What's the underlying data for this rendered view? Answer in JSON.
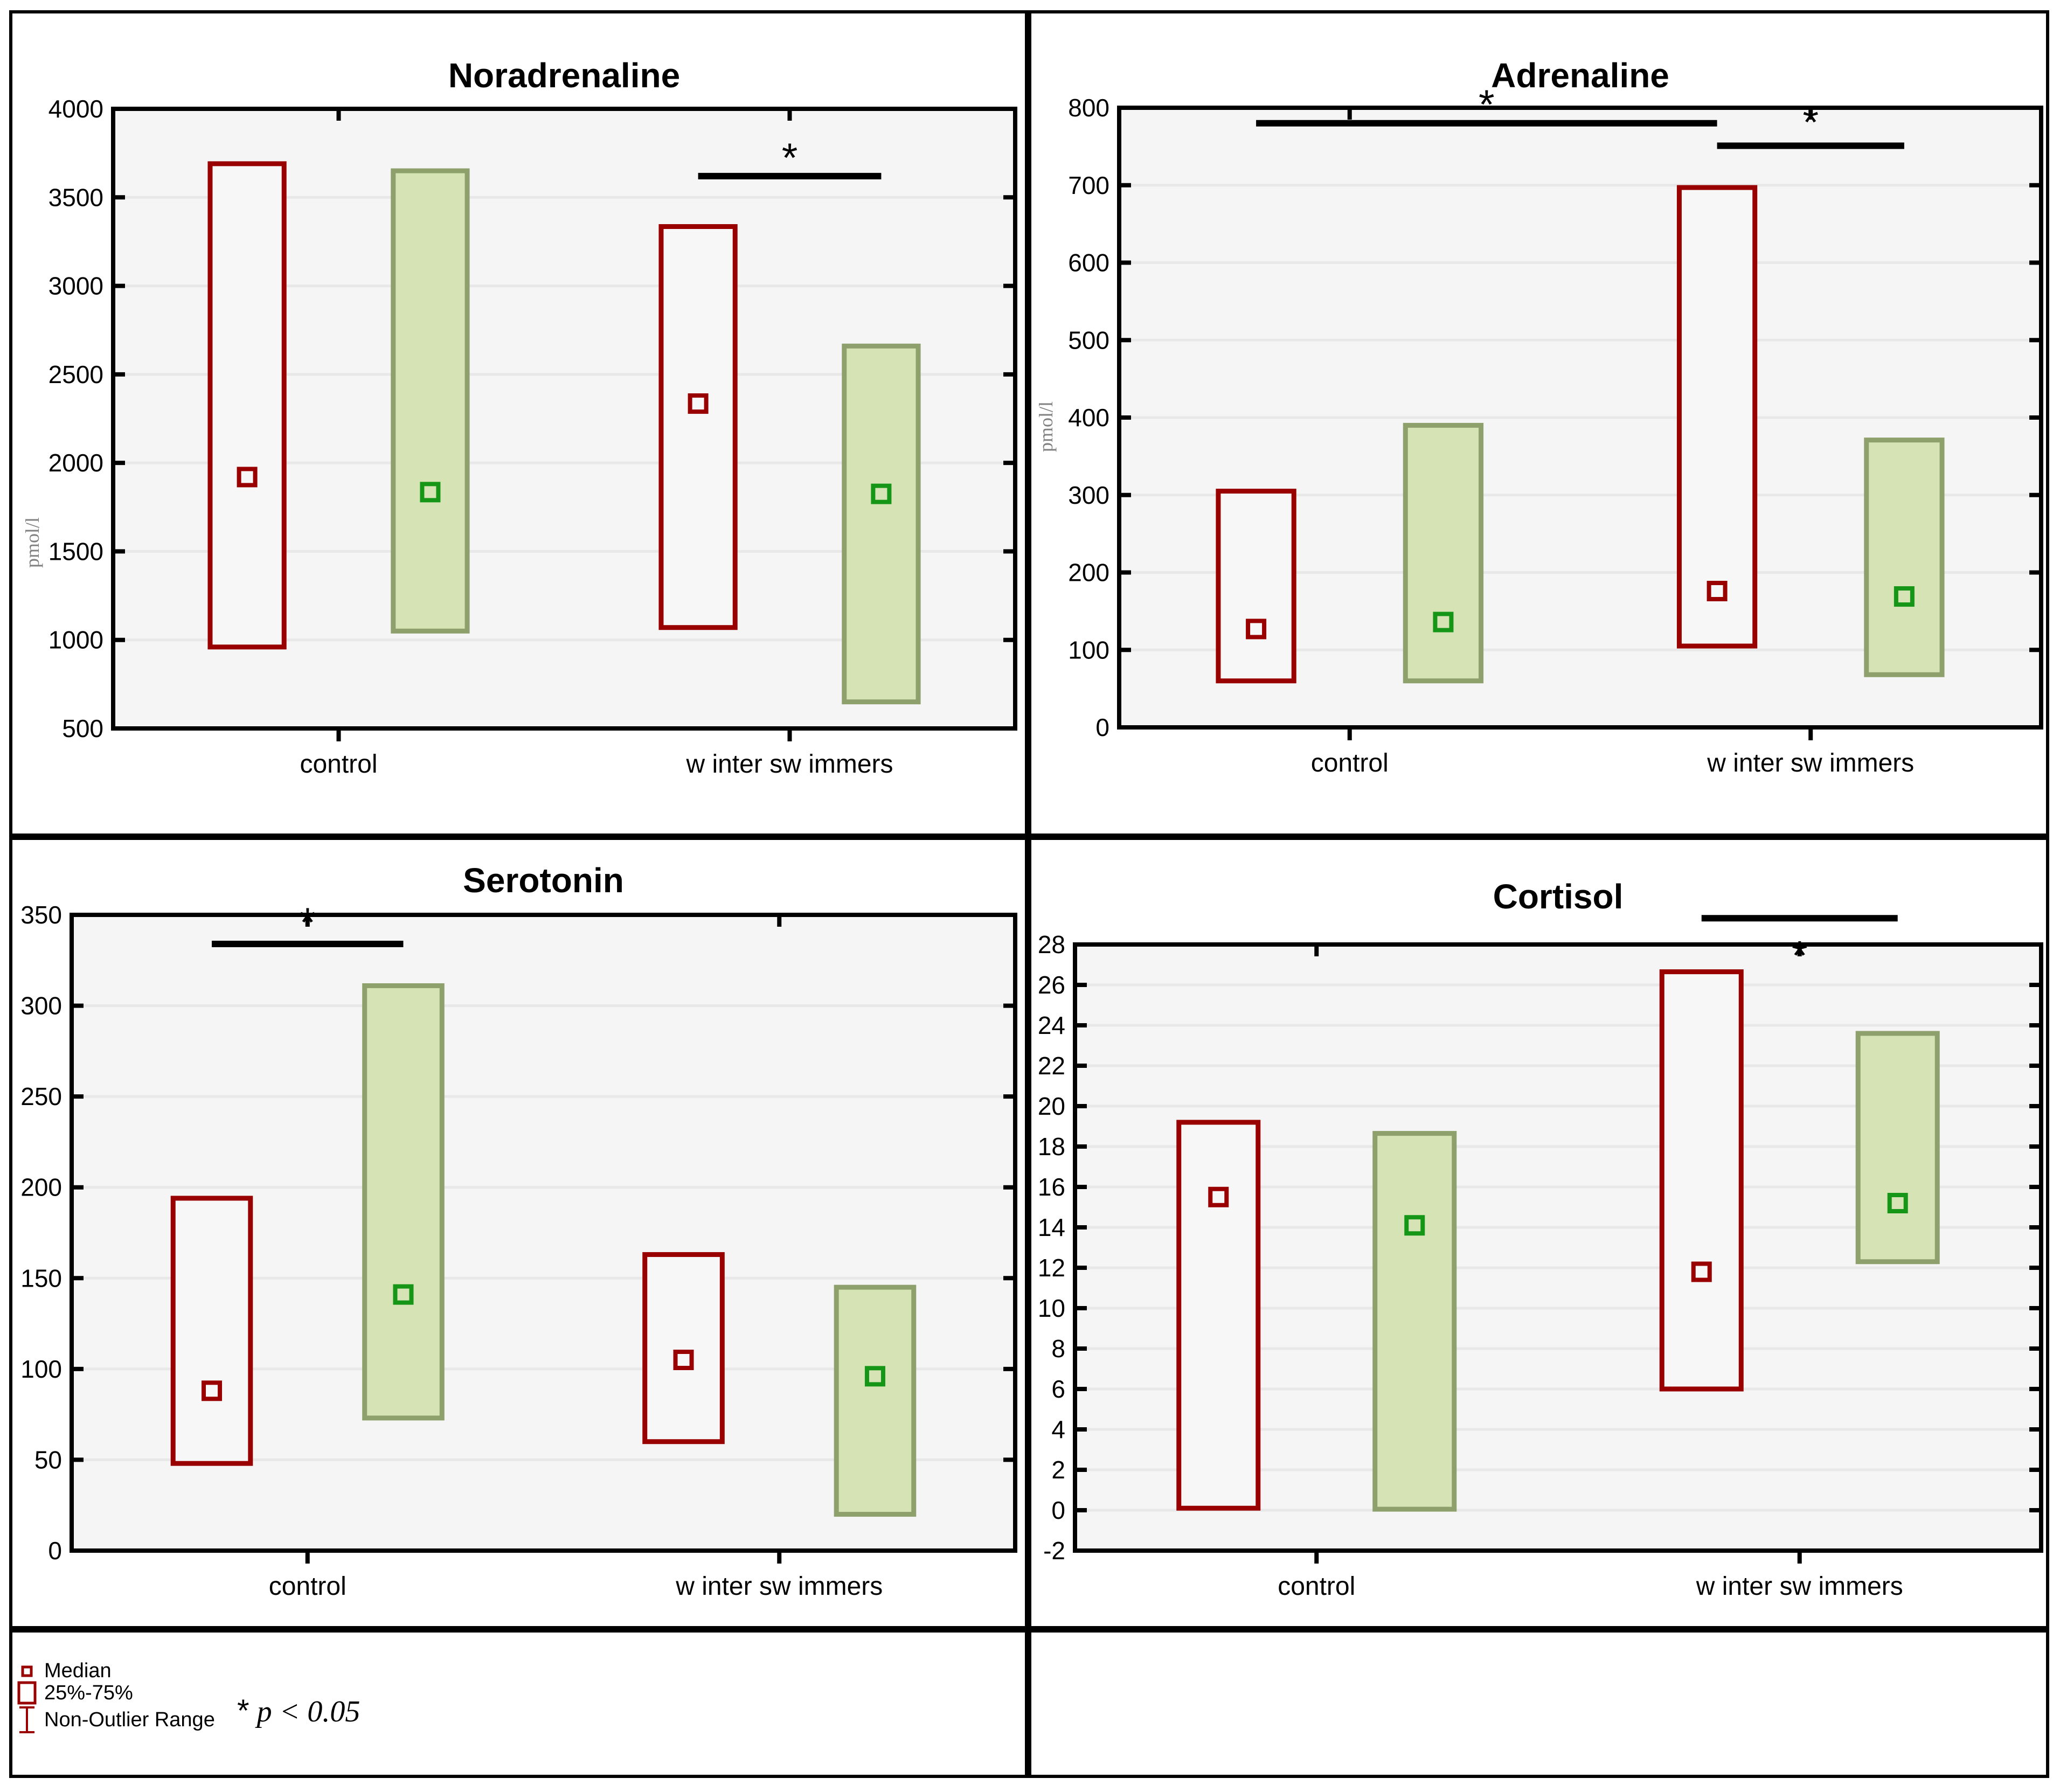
{
  "figure": {
    "colors": {
      "red_series": "#990000",
      "red_box_fill": "#f7f7f7",
      "green_fill": "#d5e3b5",
      "green_border": "#8ea06b",
      "green_marker": "#169616",
      "plot_bg": "#f5f5f5",
      "gridline": "#e8e8e8",
      "axis": "#000000"
    },
    "categories": [
      "control",
      "w inter sw immers"
    ]
  },
  "legend": {
    "items": [
      {
        "icon": "median-square-icon",
        "label": "Median"
      },
      {
        "icon": "box-25-75-icon",
        "label": "25%-75%"
      },
      {
        "icon": "whisker-ibeam-icon",
        "label": "Non-Outlier Range"
      }
    ],
    "significance_note": {
      "symbol": "*",
      "text": "p < 0.05"
    }
  },
  "chart_data": [
    {
      "type": "box",
      "title": "Noradrenaline",
      "ylabel": "pmol/l",
      "ylim": [
        500,
        4000
      ],
      "ystep": 500,
      "grid": true,
      "categories": [
        "control",
        "w inter sw immers"
      ],
      "series": [
        {
          "name": "red",
          "boxes": [
            {
              "category": "control",
              "q1": 960,
              "q3": 3690,
              "median": 1920
            },
            {
              "category": "w inter sw immers",
              "q1": 1070,
              "q3": 3335,
              "median": 2335
            }
          ]
        },
        {
          "name": "green",
          "boxes": [
            {
              "category": "control",
              "q1": 1050,
              "q3": 3650,
              "median": 1835
            },
            {
              "category": "w inter sw immers",
              "q1": 650,
              "q3": 2660,
              "median": 1825
            }
          ]
        }
      ],
      "significance_lines": [
        {
          "between": [
            [
              "w inter sw immers",
              "red"
            ],
            [
              "w inter sw immers",
              "green"
            ]
          ],
          "line_y": 3620,
          "star_y": 3705
        }
      ]
    },
    {
      "type": "box",
      "title": "Adrenaline",
      "ylabel": "pmol/l",
      "ylim": [
        0,
        800
      ],
      "ystep": 100,
      "grid": true,
      "categories": [
        "control",
        "w inter sw immers"
      ],
      "series": [
        {
          "name": "red",
          "boxes": [
            {
              "category": "control",
              "q1": 60,
              "q3": 305,
              "median": 127
            },
            {
              "category": "w inter sw immers",
              "q1": 105,
              "q3": 697,
              "median": 176
            }
          ]
        },
        {
          "name": "green",
          "boxes": [
            {
              "category": "control",
              "q1": 60,
              "q3": 390,
              "median": 136
            },
            {
              "category": "w inter sw immers",
              "q1": 68,
              "q3": 371,
              "median": 169
            }
          ]
        }
      ],
      "significance_lines": [
        {
          "between": [
            [
              "control",
              "red"
            ],
            [
              "w inter sw immers",
              "red"
            ]
          ],
          "line_y": 780,
          "star_y": 800
        },
        {
          "between": [
            [
              "w inter sw immers",
              "red"
            ],
            [
              "w inter sw immers",
              "green"
            ]
          ],
          "line_y": 751,
          "star_y": 777
        }
      ]
    },
    {
      "type": "box",
      "title": "Serotonin",
      "ylabel": null,
      "ylim": [
        0,
        350
      ],
      "ystep": 50,
      "grid": true,
      "categories": [
        "control",
        "w inter sw immers"
      ],
      "series": [
        {
          "name": "red",
          "boxes": [
            {
              "category": "control",
              "q1": 48,
              "q3": 194,
              "median": 88
            },
            {
              "category": "w inter sw immers",
              "q1": 60,
              "q3": 163,
              "median": 105
            }
          ]
        },
        {
          "name": "green",
          "boxes": [
            {
              "category": "control",
              "q1": 73,
              "q3": 311,
              "median": 141
            },
            {
              "category": "w inter sw immers",
              "q1": 20,
              "q3": 145,
              "median": 96
            }
          ]
        }
      ],
      "significance_lines": [
        {
          "between": [
            [
              "control",
              "red"
            ],
            [
              "control",
              "green"
            ]
          ],
          "line_y": 334,
          "star_y": 344
        }
      ]
    },
    {
      "type": "box",
      "title": "Cortisol",
      "ylabel": null,
      "ylim": [
        -2,
        28
      ],
      "ystep": 2,
      "grid": true,
      "categories": [
        "control",
        "w inter sw immers"
      ],
      "series": [
        {
          "name": "red",
          "boxes": [
            {
              "category": "control",
              "q1": 0.1,
              "q3": 19.2,
              "median": 15.5
            },
            {
              "category": "w inter sw immers",
              "q1": 6.0,
              "q3": 26.65,
              "median": 11.8
            }
          ]
        },
        {
          "name": "green",
          "boxes": [
            {
              "category": "control",
              "q1": 0.05,
              "q3": 18.65,
              "median": 14.1
            },
            {
              "category": "w inter sw immers",
              "q1": 12.3,
              "q3": 23.6,
              "median": 15.2
            }
          ]
        }
      ],
      "significance_lines": [
        {
          "between": [
            [
              "w inter sw immers",
              "red"
            ],
            [
              "w inter sw immers",
              "green"
            ]
          ],
          "line_y": 29.3,
          "star_y": 27.3
        }
      ]
    }
  ]
}
